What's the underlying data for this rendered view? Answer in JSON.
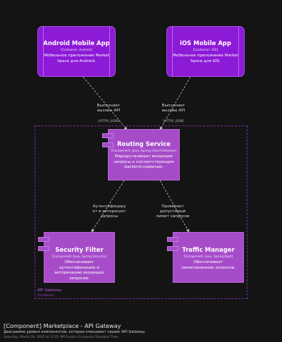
{
  "nodes": {
    "android": {
      "title": "Android Mobile App",
      "tech": "[Container: Android]",
      "desc": "Мобильное приложение Market Space для Android."
    },
    "ios": {
      "title": "iOS Mobile App",
      "tech": "[Container: iOS]",
      "desc": "Мобильное приложение Market Space для iOS."
    },
    "routing": {
      "title": "Routing Service",
      "tech": "[Component: Java, Spring Cloud Gateway]",
      "desc": "Маршрутизирует входящие запросы к соответствующим backend-сервисам."
    },
    "security": {
      "title": "Security Filter",
      "tech": "[Component: Java, Spring Security]",
      "desc": "Обеспечивает аутентификацию и авторизацию входящих запросов."
    },
    "traffic": {
      "title": "Traffic Manager",
      "tech": "[Component: Java, Spring Boot]",
      "desc": "Обеспечивает лимитирование запросов."
    }
  },
  "relations": {
    "android_routing": {
      "label": "Выполняет\nвызовы API",
      "tech": "[HTTPS, JSON]"
    },
    "ios_routing": {
      "label": "Выполняет\nвызовы API",
      "tech": "[HTTPS, JSON]"
    },
    "routing_security": {
      "label": "Аутентифициру\nет и авторизует\nзапросы",
      "tech": ""
    },
    "routing_traffic": {
      "label": "Проверяет\nдопустимый\nлимит запросов",
      "tech": ""
    }
  },
  "boundary": {
    "name": "API Gateway",
    "type": "[Container]"
  },
  "footer": {
    "title": "[Component] Marketplace - API Gateway",
    "description": "Диаграмма уровня компонентов, которая описывает сервис API Gateway.",
    "date": "Saturday, March 29, 2025 at 12:02 AM Eastern European Standard Time"
  },
  "colors": {
    "background": "#141414",
    "container": "#8c1ad6",
    "component": "#a64cc9",
    "boundary": "#7a2ea6",
    "arrow": "#bfbfbf"
  }
}
